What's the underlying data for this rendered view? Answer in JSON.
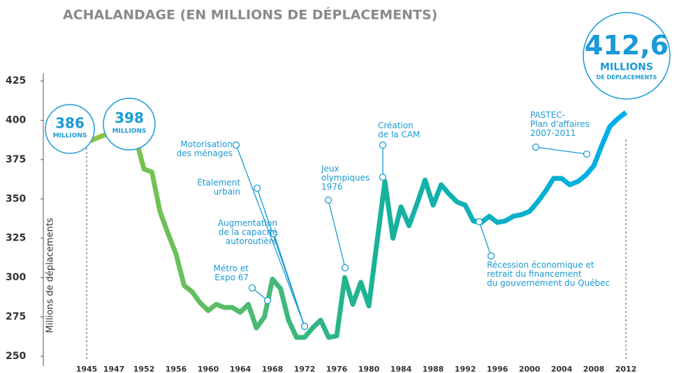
{
  "chart_data": {
    "type": "line",
    "title": "ACHALANDAGE (EN MILLIONS DE DÉPLACEMENTS)",
    "y_label": "Millions de déplacements",
    "x": [
      1945,
      1947,
      1950,
      1952,
      1953,
      1954,
      1955,
      1956,
      1957,
      1958,
      1959,
      1960,
      1961,
      1962,
      1963,
      1964,
      1965,
      1966,
      1967,
      1968,
      1969,
      1970,
      1971,
      1972,
      1973,
      1974,
      1975,
      1976,
      1977,
      1978,
      1979,
      1980,
      1981,
      1982,
      1983,
      1984,
      1985,
      1986,
      1987,
      1988,
      1989,
      1990,
      1991,
      1992,
      1993,
      1994,
      1995,
      1996,
      1997,
      1998,
      1999,
      2000,
      2001,
      2002,
      2003,
      2004,
      2005,
      2006,
      2007,
      2008,
      2009,
      2010,
      2011,
      2012
    ],
    "series": [
      {
        "name": "Achalandage",
        "color": "#00aeef",
        "start_color": "#8dc63f",
        "values": [
          386,
          393,
          398,
          369,
          367,
          342,
          328,
          315,
          295,
          291,
          284,
          279,
          283,
          281,
          281,
          278,
          283,
          268,
          275,
          299,
          293,
          273,
          262,
          262,
          268,
          273,
          262,
          263,
          300,
          283,
          297,
          282,
          322,
          361,
          325,
          345,
          333,
          347,
          362,
          346,
          359,
          353,
          348,
          346,
          336,
          335,
          339,
          335,
          336,
          339,
          340,
          342,
          348,
          355,
          363,
          363,
          359,
          361,
          365,
          371,
          384,
          396,
          401,
          405
        ]
      }
    ],
    "xticks": [
      1945,
      1947,
      1952,
      1956,
      1960,
      1964,
      1968,
      1972,
      1976,
      1980,
      1984,
      1988,
      1992,
      1996,
      2000,
      2004,
      2008,
      2012
    ],
    "ylim": [
      250,
      425
    ],
    "yticks": [
      250,
      275,
      300,
      325,
      350,
      375,
      400,
      425
    ],
    "bubbles": [
      {
        "value": 386,
        "unit": "MILLIONS"
      },
      {
        "value": 398,
        "unit": "MILLIONS"
      },
      {
        "value": 412.6,
        "label": "412,6",
        "unit": "MILLIONS",
        "detail": "DE DÉPLACEMENTS"
      }
    ],
    "annotations": [
      {
        "lines": [
          "Motorisation",
          "des ménages"
        ]
      },
      {
        "lines": [
          "Étalement",
          "urbain"
        ]
      },
      {
        "lines": [
          "Augmentation",
          "de la capacité",
          "autoroutière"
        ]
      },
      {
        "lines": [
          "Métro et",
          "Expo 67"
        ]
      },
      {
        "lines": [
          "Jeux",
          "olympiques",
          "1976"
        ]
      },
      {
        "lines": [
          "Création",
          "de la CAM"
        ]
      },
      {
        "lines": [
          "PASTEC-",
          "Plan d'affaires",
          "2007-2011"
        ]
      },
      {
        "lines": [
          "Récession économique et",
          "retrait du financement",
          "du gouvernement du Québec"
        ]
      }
    ]
  }
}
